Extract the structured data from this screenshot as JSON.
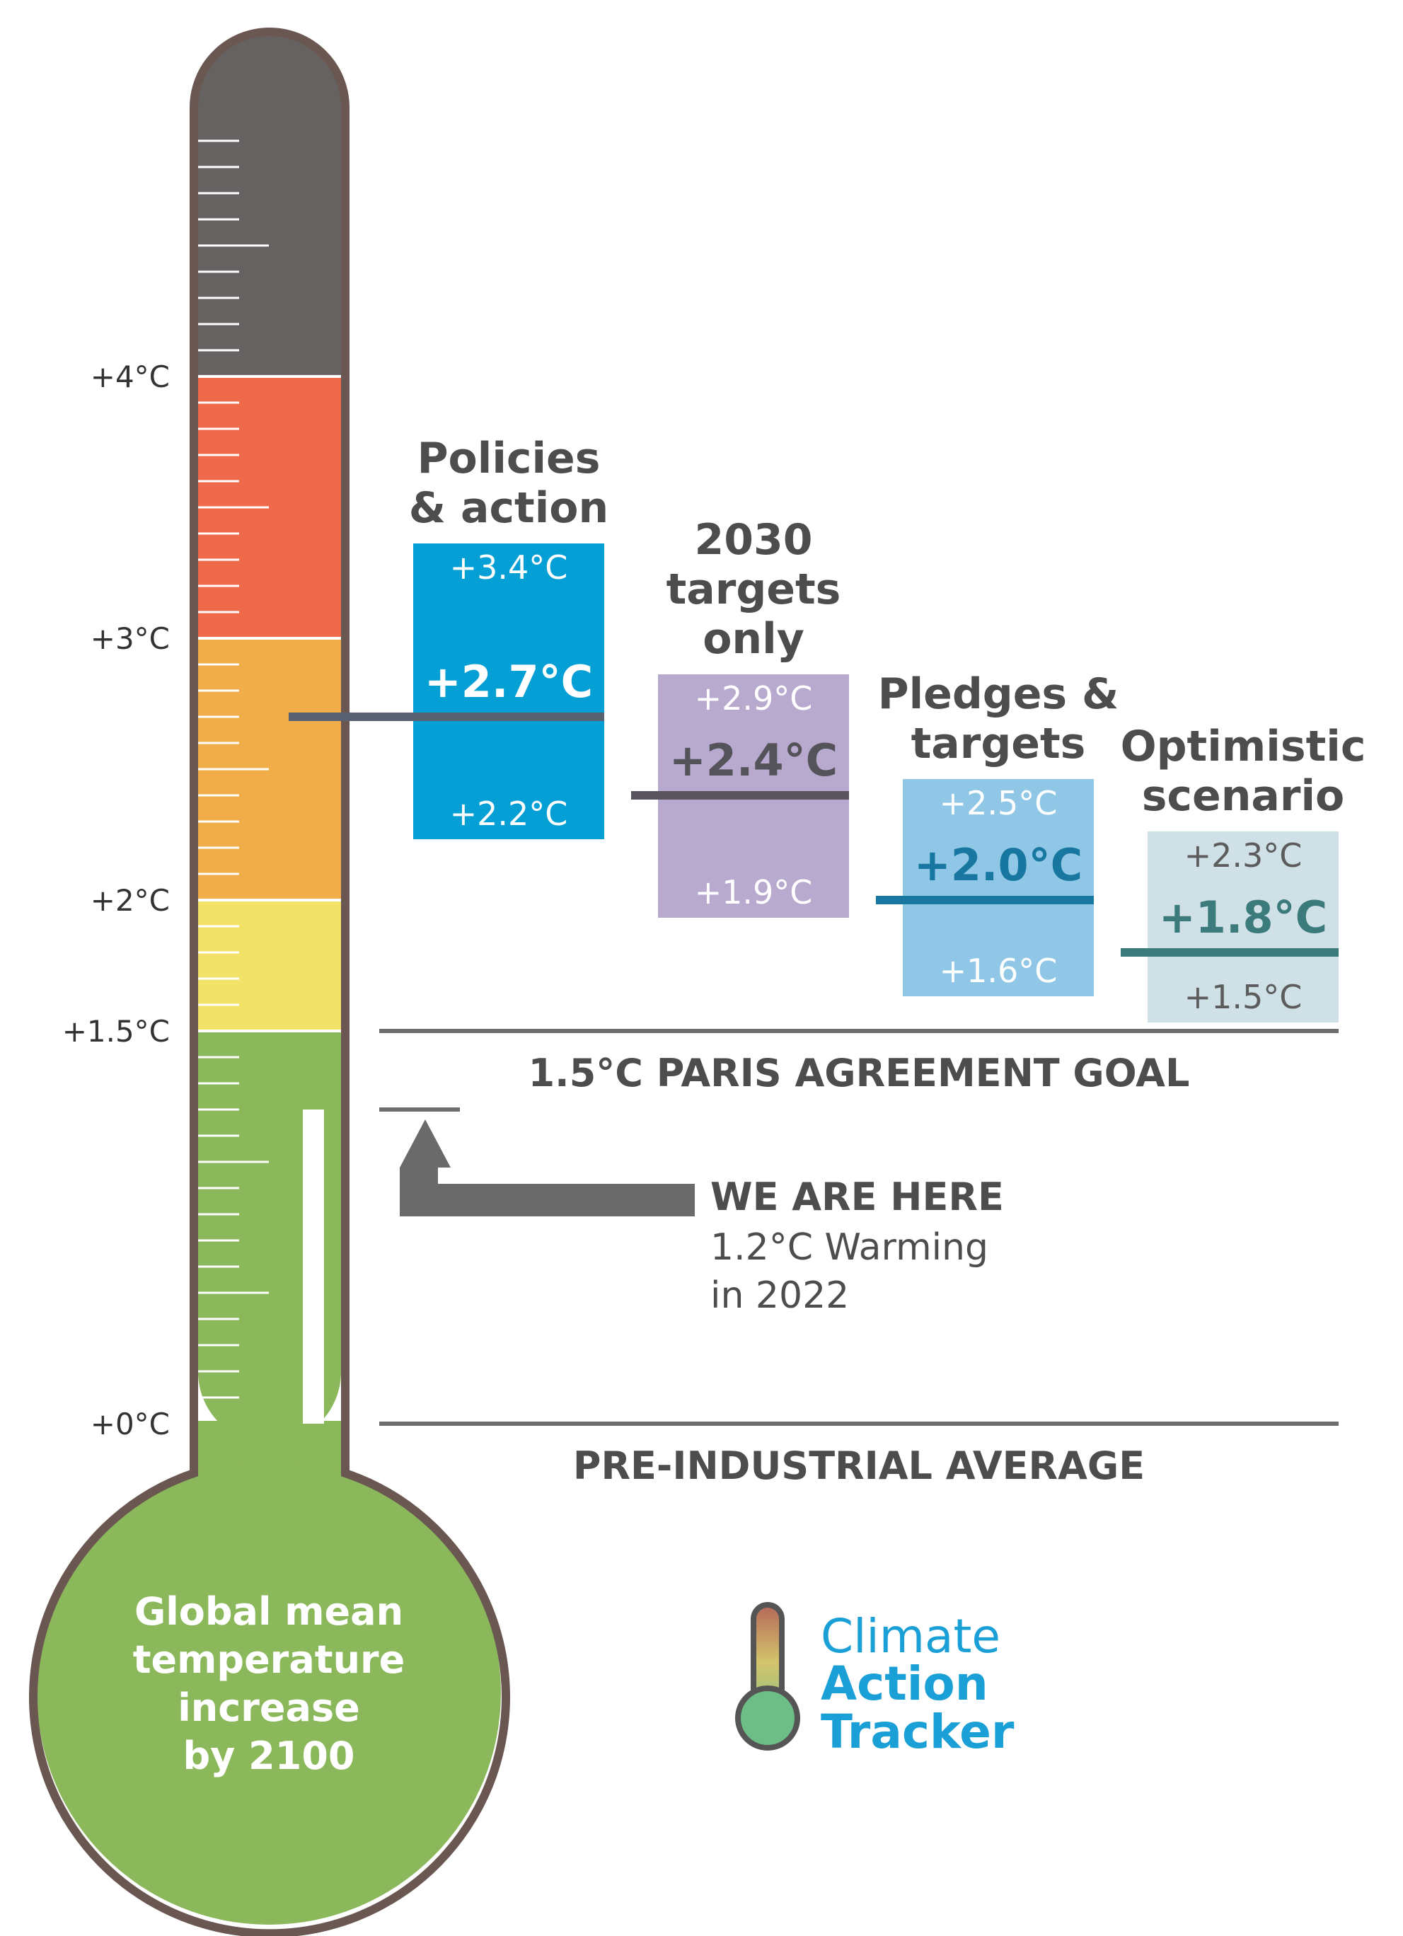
{
  "chart_data": {
    "type": "thermometer",
    "title": "",
    "bulb_label": [
      "Global mean",
      "temperature",
      "increase",
      "by 2100"
    ],
    "axis": {
      "unit": "°C",
      "range": [
        0,
        5
      ],
      "tick_labels": [
        {
          "value": 4,
          "label": "+4°C"
        },
        {
          "value": 3,
          "label": "+3°C"
        },
        {
          "value": 2,
          "label": "+2°C"
        },
        {
          "value": 1.5,
          "label": "+1.5°C"
        },
        {
          "value": 0,
          "label": "+0°C"
        }
      ]
    },
    "bands": [
      {
        "from": 0,
        "to": 1.5,
        "color": "#8cb85c"
      },
      {
        "from": 1.5,
        "to": 2.0,
        "color": "#f3e26a"
      },
      {
        "from": 2.0,
        "to": 3.0,
        "color": "#f1ad4a"
      },
      {
        "from": 3.0,
        "to": 4.0,
        "color": "#ee6a4a"
      },
      {
        "from": 4.0,
        "to": 5.0,
        "color": "#666261"
      }
    ],
    "current_level": 1.2,
    "scenarios": [
      {
        "name": [
          "Policies",
          "& action"
        ],
        "low": 2.2,
        "mid": 2.7,
        "high": 3.4,
        "low_label": "+2.2°C",
        "mid_label": "+2.7°C",
        "high_label": "+3.4°C",
        "box_color": "#049fd4",
        "line_color": "#5a6170",
        "label_color": "#ffffff",
        "mid_color": "#ffffff"
      },
      {
        "name": [
          "2030",
          "targets",
          "only"
        ],
        "low": 1.9,
        "mid": 2.4,
        "high": 2.9,
        "low_label": "+1.9°C",
        "mid_label": "+2.4°C",
        "high_label": "+2.9°C",
        "box_color": "#b8a9cf",
        "line_color": "#57545e",
        "label_color": "#ffffff",
        "mid_color": "#55535a"
      },
      {
        "name": [
          "Pledges &",
          "targets"
        ],
        "low": 1.6,
        "mid": 2.0,
        "high": 2.5,
        "low_label": "+1.6°C",
        "mid_label": "+2.0°C",
        "high_label": "+2.5°C",
        "box_color": "#91c7e6",
        "line_color": "#1777a0",
        "label_color": "#ffffff",
        "mid_color": "#1777a0"
      },
      {
        "name": [
          "Optimistic",
          "scenario"
        ],
        "low": 1.5,
        "mid": 1.8,
        "high": 2.3,
        "low_label": "+1.5°C",
        "mid_label": "+1.8°C",
        "high_label": "+2.3°C",
        "box_color": "#cfe0e7",
        "line_color": "#3c7b7b",
        "label_color": "#5c5c5c",
        "mid_color": "#3c7b7b"
      }
    ],
    "reference_lines": [
      {
        "value": 1.5,
        "label": "1.5°C PARIS AGREEMENT GOAL"
      },
      {
        "value": 0,
        "label": "PRE-INDUSTRIAL AVERAGE"
      }
    ],
    "annotation": {
      "heading": "WE ARE HERE",
      "lines": [
        "1.2°C Warming",
        "in 2022"
      ]
    },
    "logo": {
      "line1": "Climate",
      "line2": "Action",
      "line3": "Tracker"
    }
  },
  "colors": {
    "outline": "#6b5752",
    "text_dark": "#4d4d4d",
    "arrow": "#6a6a6a",
    "logo_blue": "#1aa0d6"
  }
}
